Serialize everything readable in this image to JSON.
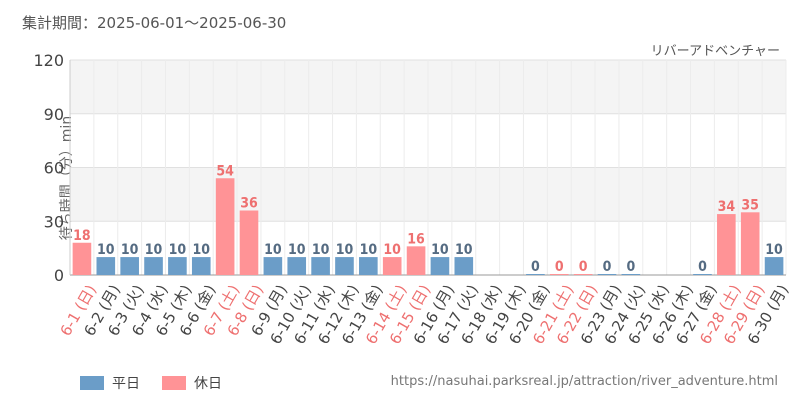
{
  "header": {
    "period_label": "集計期間：2025-06-01～2025-06-30",
    "attraction": "リバーアドベンチャー"
  },
  "colors": {
    "weekday": "#6b9dc8",
    "holiday": "#ff9396",
    "holiday_label": "#ee7070",
    "weekday_label": "#556b82"
  },
  "legend": [
    {
      "label": "平日",
      "color": "#6b9dc8"
    },
    {
      "label": "休日",
      "color": "#ff9396"
    }
  ],
  "source_url": "https://nasuhai.parksreal.jp/attraction/river_adventure.html",
  "chart_data": {
    "type": "bar",
    "ylabel": "待ち時間（分）min",
    "ylim": [
      0,
      120
    ],
    "yticks": [
      0,
      30,
      60,
      90,
      120
    ],
    "grid": true,
    "legend_position": "bottom-left",
    "categories": [
      "6-1 (日)",
      "6-2 (月)",
      "6-3 (火)",
      "6-4 (水)",
      "6-5 (木)",
      "6-6 (金)",
      "6-7 (土)",
      "6-8 (日)",
      "6-9 (月)",
      "6-10 (火)",
      "6-11 (水)",
      "6-12 (木)",
      "6-13 (金)",
      "6-14 (土)",
      "6-15 (日)",
      "6-16 (月)",
      "6-17 (火)",
      "6-18 (水)",
      "6-19 (木)",
      "6-20 (金)",
      "6-21 (土)",
      "6-22 (日)",
      "6-23 (月)",
      "6-24 (火)",
      "6-25 (水)",
      "6-26 (木)",
      "6-27 (金)",
      "6-28 (土)",
      "6-29 (日)",
      "6-30 (月)"
    ],
    "values": [
      18,
      10,
      10,
      10,
      10,
      10,
      54,
      36,
      10,
      10,
      10,
      10,
      10,
      10,
      16,
      10,
      10,
      null,
      null,
      0,
      0,
      0,
      0,
      0,
      null,
      null,
      0,
      34,
      35,
      10
    ],
    "holiday": [
      true,
      false,
      false,
      false,
      false,
      false,
      true,
      true,
      false,
      false,
      false,
      false,
      false,
      true,
      true,
      false,
      false,
      false,
      false,
      false,
      true,
      true,
      false,
      false,
      false,
      false,
      false,
      true,
      true,
      false
    ]
  }
}
